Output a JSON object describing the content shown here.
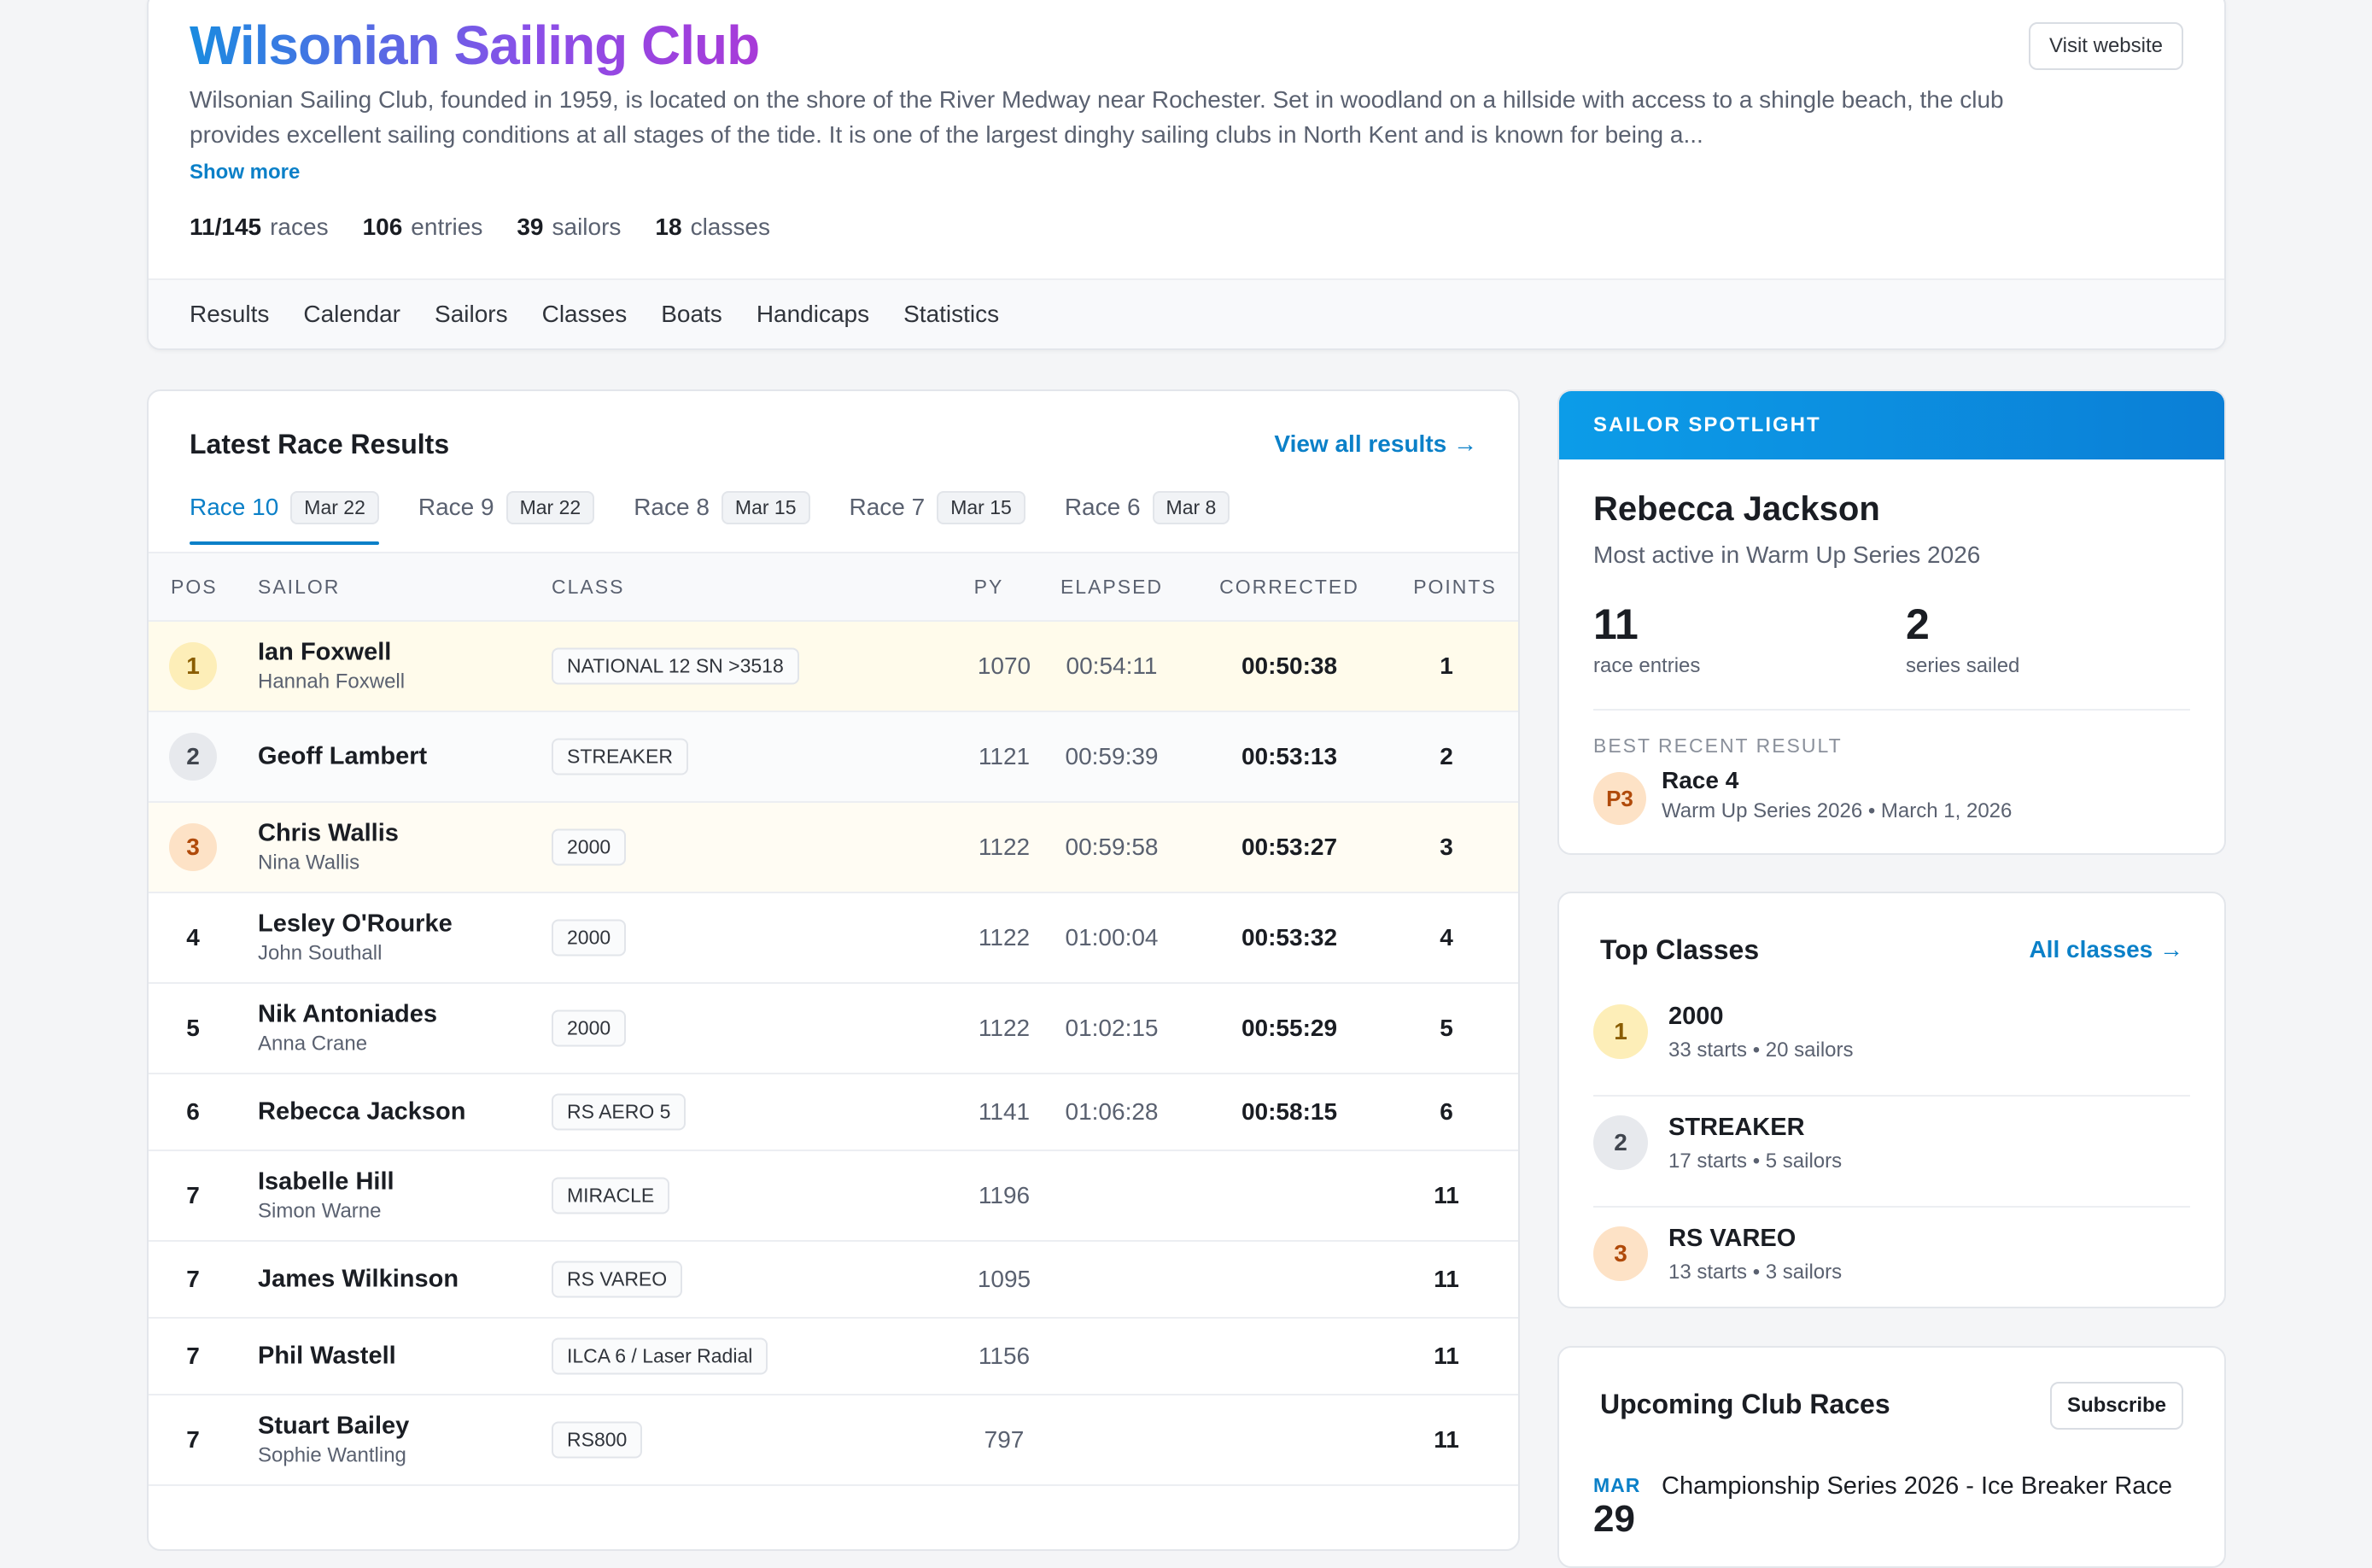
{
  "club": {
    "title": "Wilsonian Sailing Club",
    "visit_label": "Visit website",
    "description": "Wilsonian Sailing Club, founded in 1959, is located on the shore of the River Medway near Rochester. Set in woodland on a hillside with access to a shingle beach, the club provides excellent sailing conditions at all stages of the tide. It is one of the largest dinghy sailing clubs in North Kent and is known for being a...",
    "show_more": "Show more",
    "stats": [
      {
        "value": "11/145",
        "label": "races"
      },
      {
        "value": "106",
        "label": "entries"
      },
      {
        "value": "39",
        "label": "sailors"
      },
      {
        "value": "18",
        "label": "classes"
      }
    ],
    "nav": [
      "Results",
      "Calendar",
      "Sailors",
      "Classes",
      "Boats",
      "Handicaps",
      "Statistics"
    ]
  },
  "results": {
    "title": "Latest Race Results",
    "view_all": "View all results →",
    "tabs": [
      {
        "label": "Race 10",
        "date": "Mar 22"
      },
      {
        "label": "Race 9",
        "date": "Mar 22"
      },
      {
        "label": "Race 8",
        "date": "Mar 15"
      },
      {
        "label": "Race 7",
        "date": "Mar 15"
      },
      {
        "label": "Race 6",
        "date": "Mar 8"
      }
    ],
    "columns": {
      "pos": "POS",
      "sailor": "SAILOR",
      "class": "CLASS",
      "py": "PY",
      "elapsed": "ELAPSED",
      "corrected": "CORRECTED",
      "points": "POINTS"
    },
    "rows": [
      {
        "pos": "1",
        "name": "Ian Foxwell",
        "crew": "Hannah Foxwell",
        "class": "NATIONAL 12 SN >3518",
        "py": "1070",
        "elapsed": "00:54:11",
        "corrected": "00:50:38",
        "points": "1"
      },
      {
        "pos": "2",
        "name": "Geoff Lambert",
        "crew": "",
        "class": "STREAKER",
        "py": "1121",
        "elapsed": "00:59:39",
        "corrected": "00:53:13",
        "points": "2"
      },
      {
        "pos": "3",
        "name": "Chris Wallis",
        "crew": "Nina Wallis",
        "class": "2000",
        "py": "1122",
        "elapsed": "00:59:58",
        "corrected": "00:53:27",
        "points": "3"
      },
      {
        "pos": "4",
        "name": "Lesley O'Rourke",
        "crew": "John Southall",
        "class": "2000",
        "py": "1122",
        "elapsed": "01:00:04",
        "corrected": "00:53:32",
        "points": "4"
      },
      {
        "pos": "5",
        "name": "Nik Antoniades",
        "crew": "Anna Crane",
        "class": "2000",
        "py": "1122",
        "elapsed": "01:02:15",
        "corrected": "00:55:29",
        "points": "5"
      },
      {
        "pos": "6",
        "name": "Rebecca Jackson",
        "crew": "",
        "class": "RS AERO 5",
        "py": "1141",
        "elapsed": "01:06:28",
        "corrected": "00:58:15",
        "points": "6"
      },
      {
        "pos": "7",
        "name": "Isabelle Hill",
        "crew": "Simon Warne",
        "class": "MIRACLE",
        "py": "1196",
        "elapsed": "",
        "corrected": "",
        "points": "11"
      },
      {
        "pos": "7",
        "name": "James Wilkinson",
        "crew": "",
        "class": "RS VAREO",
        "py": "1095",
        "elapsed": "",
        "corrected": "",
        "points": "11"
      },
      {
        "pos": "7",
        "name": "Phil Wastell",
        "crew": "",
        "class": "ILCA 6 / Laser Radial",
        "py": "1156",
        "elapsed": "",
        "corrected": "",
        "points": "11"
      },
      {
        "pos": "7",
        "name": "Stuart Bailey",
        "crew": "Sophie Wantling",
        "class": "RS800",
        "py": "797",
        "elapsed": "",
        "corrected": "",
        "points": "11"
      }
    ]
  },
  "spotlight": {
    "header": "SAILOR SPOTLIGHT",
    "name": "Rebecca Jackson",
    "subtitle": "Most active in Warm Up Series 2026",
    "stat1_value": "11",
    "stat1_label": "race entries",
    "stat2_value": "2",
    "stat2_label": "series sailed",
    "best_label": "BEST RECENT RESULT",
    "best_badge": "P3",
    "best_race": "Race 4",
    "best_detail": "Warm Up Series 2026 • March 1, 2026"
  },
  "top_classes": {
    "title": "Top Classes",
    "all_link": "All classes →",
    "items": [
      {
        "rank": "1",
        "name": "2000",
        "meta": "33 starts • 20 sailors"
      },
      {
        "rank": "2",
        "name": "STREAKER",
        "meta": "17 starts • 5 sailors"
      },
      {
        "rank": "3",
        "name": "RS VAREO",
        "meta": "13 starts • 3 sailors"
      }
    ]
  },
  "upcoming": {
    "title": "Upcoming Club Races",
    "subscribe": "Subscribe",
    "month": "MAR",
    "day": "29",
    "event": "Championship Series 2026 - Ice Breaker Race"
  },
  "colors": {
    "accent": "#0b80c8",
    "gold_row": "#fffbeb",
    "spotlight_header": "#0c9ce8"
  }
}
